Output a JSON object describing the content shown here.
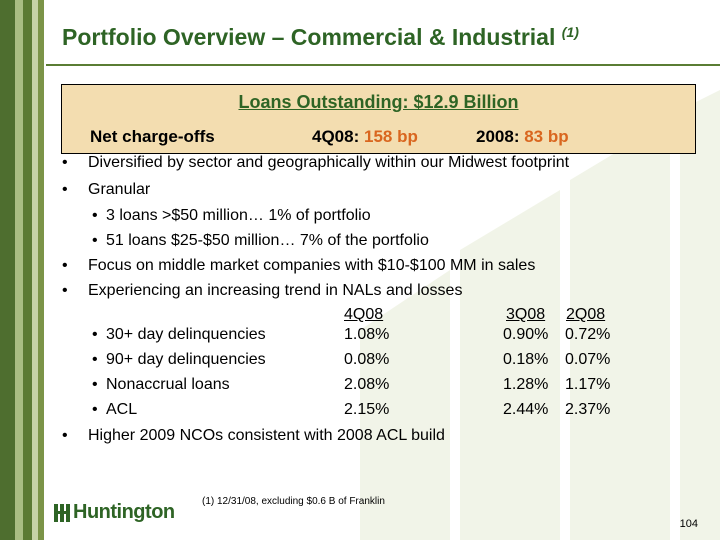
{
  "title": "Portfolio Overview – Commercial & Industrial",
  "title_note": "(1)",
  "box": {
    "heading": "Loans Outstanding: $12.9 Billion",
    "nco_label": "Net charge-offs",
    "q_label": "4Q08: ",
    "q_value": "158 bp",
    "y_label": "2008: ",
    "y_value": "83 bp"
  },
  "bullets": [
    "Diversified by sector and geographically within our Midwest footprint",
    "Granular",
    "Focus on middle market companies with $10-$100 MM in sales",
    "Experiencing an increasing trend in NALs and losses",
    "Higher 2009 NCOs consistent with 2008 ACL build"
  ],
  "granular_sub": [
    "3 loans >$50 million… 1% of portfolio",
    "51 loans $25-$50 million… 7% of the portfolio"
  ],
  "table": {
    "headers": [
      "4Q08",
      "3Q08",
      "2Q08"
    ],
    "rows": [
      {
        "label": "30+ day delinquencies",
        "values": [
          "1.08%",
          "0.90%",
          "0.72%"
        ]
      },
      {
        "label": "90+ day delinquencies",
        "values": [
          "0.08%",
          "0.18%",
          "0.07%"
        ]
      },
      {
        "label": "Nonaccrual loans",
        "values": [
          "2.08%",
          "1.28%",
          "1.17%"
        ]
      },
      {
        "label": "ACL",
        "values": [
          "2.15%",
          "2.44%",
          "2.37%"
        ]
      }
    ]
  },
  "bullet_glyph": "•",
  "footnote": "(1)  12/31/08, excluding  $0.6 B of Franklin",
  "logo_text": "Huntington",
  "page_number": "104",
  "colors": {
    "title_green": "#2e6425",
    "accent_orange": "#d9661f",
    "box_fill": "#f3ddb0"
  }
}
